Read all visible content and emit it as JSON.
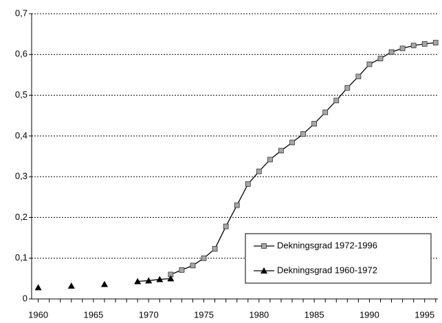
{
  "chart_data": {
    "type": "line",
    "xlim": [
      1959.4,
      1996.2
    ],
    "ylim": [
      0,
      0.7
    ],
    "xticks": [
      1960,
      1965,
      1970,
      1975,
      1980,
      1985,
      1990,
      1995
    ],
    "xminorticks": [
      1960,
      1961,
      1962,
      1963,
      1964,
      1965,
      1966,
      1967,
      1968,
      1969,
      1970,
      1971,
      1972,
      1973,
      1974,
      1975,
      1976,
      1977,
      1978,
      1979,
      1980,
      1981,
      1982,
      1983,
      1984,
      1985,
      1986,
      1987,
      1988,
      1989,
      1990,
      1991,
      1992,
      1993,
      1994,
      1995,
      1996
    ],
    "yticks": [
      0,
      {
        "value": 0.1,
        "label": "0,1"
      },
      {
        "value": 0.2,
        "label": "0,2"
      },
      {
        "value": 0.3,
        "label": "0,3"
      },
      {
        "value": 0.4,
        "label": "0,4"
      },
      {
        "value": 0.5,
        "label": "0,5"
      },
      {
        "value": 0.6,
        "label": "0,6"
      },
      {
        "value": 0.7,
        "label": "0,7"
      }
    ],
    "grid": true,
    "legend": "lower right",
    "series": [
      {
        "name": "Dekningsgrad 1972-1996",
        "color": "#000000",
        "marker": "square",
        "marker_color": "#a6a6a6",
        "x": [
          1972,
          1973,
          1974,
          1975,
          1976,
          1977,
          1978,
          1979,
          1980,
          1981,
          1982,
          1983,
          1984,
          1985,
          1986,
          1987,
          1988,
          1989,
          1990,
          1991,
          1992,
          1993,
          1994,
          1995,
          1996
        ],
        "values": [
          0.06,
          0.071,
          0.082,
          0.1,
          0.123,
          0.178,
          0.23,
          0.282,
          0.313,
          0.342,
          0.364,
          0.384,
          0.405,
          0.43,
          0.458,
          0.487,
          0.518,
          0.546,
          0.576,
          0.59,
          0.606,
          0.615,
          0.622,
          0.626,
          0.629
        ]
      },
      {
        "name": "Dekningsgrad 1960-1972",
        "color": "#000000",
        "marker": "triangle",
        "marker_color": "#000000",
        "x": [
          1960,
          1961,
          1962,
          1963,
          1964,
          1965,
          1966,
          1967,
          1968,
          1969,
          1970,
          1971,
          1972
        ],
        "values": [
          0.028,
          null,
          null,
          0.032,
          null,
          null,
          0.036,
          null,
          null,
          0.043,
          0.045,
          0.048,
          0.05
        ]
      }
    ]
  }
}
